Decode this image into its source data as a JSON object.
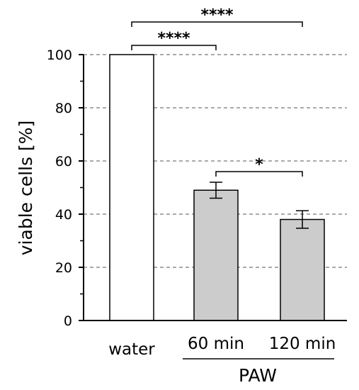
{
  "chart_data": {
    "type": "bar",
    "categories": [
      "water",
      "60 min",
      "120 min"
    ],
    "values": [
      100,
      49,
      38
    ],
    "errors": [
      0,
      3,
      3.3
    ],
    "bar_colors": [
      "#ffffff",
      "#cccccc",
      "#cccccc"
    ],
    "ylabel": "viable cells [%]",
    "ylim": [
      0,
      100
    ],
    "yticks": [
      0,
      20,
      40,
      60,
      80,
      100
    ],
    "grid": "dashed horizontal",
    "group_label": "PAW",
    "group_categories": [
      "60 min",
      "120 min"
    ],
    "significance": [
      {
        "from": "water",
        "to": "120 min",
        "label": "****"
      },
      {
        "from": "water",
        "to": "60 min",
        "label": "****"
      },
      {
        "from": "60 min",
        "to": "120 min",
        "label": "*"
      }
    ]
  }
}
